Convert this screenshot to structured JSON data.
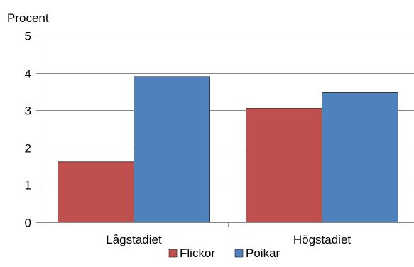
{
  "chart_data": {
    "type": "bar",
    "ylabel": "Procent",
    "categories": [
      "Lågstadiet",
      "Högstadiet"
    ],
    "series": [
      {
        "name": "Flickor",
        "values": [
          1.62,
          3.05
        ],
        "color": "#c0504d"
      },
      {
        "name": "Poikar",
        "values": [
          3.9,
          3.47
        ],
        "color": "#4f81bd"
      }
    ],
    "ylim": [
      0,
      5
    ],
    "yticks": [
      0,
      1,
      2,
      3,
      4,
      5
    ],
    "grid": true,
    "legend": "bottom"
  }
}
